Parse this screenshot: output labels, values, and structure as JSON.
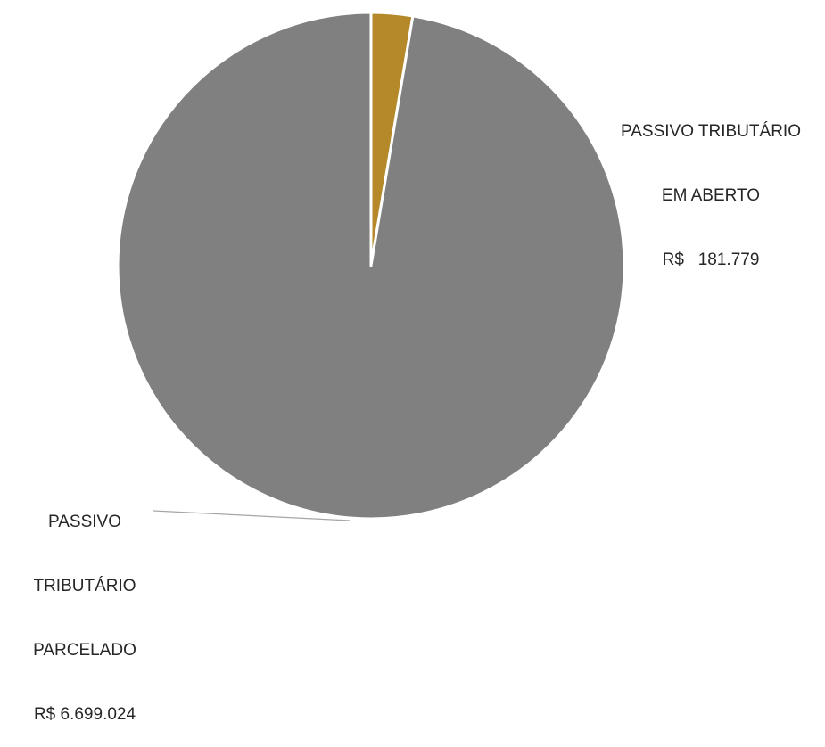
{
  "chart_data": {
    "type": "pie",
    "title": "",
    "start_angle_deg": 0,
    "direction": "clockwise",
    "slices": [
      {
        "label_lines": [
          "PASSIVO TRIBUTÁRIO",
          "EM ABERTO",
          "R$   181.779"
        ],
        "label": "PASSIVO TRIBUTÁRIO EM ABERTO",
        "value": 181779,
        "value_label": "R$   181.779",
        "color": "#B5892A"
      },
      {
        "label_lines": [
          "PASSIVO",
          "TRIBUTÁRIO",
          "PARCELADO",
          "R$ 6.699.024"
        ],
        "label": "PASSIVO TRIBUTÁRIO PARCELADO",
        "value": 6699024,
        "value_label": "R$ 6.699.024",
        "color": "#808080"
      }
    ],
    "slice_border_color": "#ffffff",
    "leader_line_color": "#A6A6A6",
    "legend": "none"
  }
}
